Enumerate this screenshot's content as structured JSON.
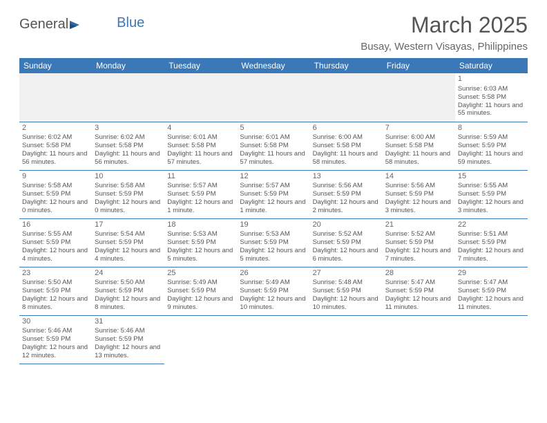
{
  "logo": {
    "text1": "General",
    "text2": "Blue"
  },
  "title": "March 2025",
  "location": "Busay, Western Visayas, Philippines",
  "header_color": "#3b78b8",
  "day_headers": [
    "Sunday",
    "Monday",
    "Tuesday",
    "Wednesday",
    "Thursday",
    "Friday",
    "Saturday"
  ],
  "weeks": [
    [
      null,
      null,
      null,
      null,
      null,
      null,
      {
        "n": "1",
        "sr": "Sunrise: 6:03 AM",
        "ss": "Sunset: 5:58 PM",
        "dl": "Daylight: 11 hours and 55 minutes."
      }
    ],
    [
      {
        "n": "2",
        "sr": "Sunrise: 6:02 AM",
        "ss": "Sunset: 5:58 PM",
        "dl": "Daylight: 11 hours and 56 minutes."
      },
      {
        "n": "3",
        "sr": "Sunrise: 6:02 AM",
        "ss": "Sunset: 5:58 PM",
        "dl": "Daylight: 11 hours and 56 minutes."
      },
      {
        "n": "4",
        "sr": "Sunrise: 6:01 AM",
        "ss": "Sunset: 5:58 PM",
        "dl": "Daylight: 11 hours and 57 minutes."
      },
      {
        "n": "5",
        "sr": "Sunrise: 6:01 AM",
        "ss": "Sunset: 5:58 PM",
        "dl": "Daylight: 11 hours and 57 minutes."
      },
      {
        "n": "6",
        "sr": "Sunrise: 6:00 AM",
        "ss": "Sunset: 5:58 PM",
        "dl": "Daylight: 11 hours and 58 minutes."
      },
      {
        "n": "7",
        "sr": "Sunrise: 6:00 AM",
        "ss": "Sunset: 5:58 PM",
        "dl": "Daylight: 11 hours and 58 minutes."
      },
      {
        "n": "8",
        "sr": "Sunrise: 5:59 AM",
        "ss": "Sunset: 5:59 PM",
        "dl": "Daylight: 11 hours and 59 minutes."
      }
    ],
    [
      {
        "n": "9",
        "sr": "Sunrise: 5:58 AM",
        "ss": "Sunset: 5:59 PM",
        "dl": "Daylight: 12 hours and 0 minutes."
      },
      {
        "n": "10",
        "sr": "Sunrise: 5:58 AM",
        "ss": "Sunset: 5:59 PM",
        "dl": "Daylight: 12 hours and 0 minutes."
      },
      {
        "n": "11",
        "sr": "Sunrise: 5:57 AM",
        "ss": "Sunset: 5:59 PM",
        "dl": "Daylight: 12 hours and 1 minute."
      },
      {
        "n": "12",
        "sr": "Sunrise: 5:57 AM",
        "ss": "Sunset: 5:59 PM",
        "dl": "Daylight: 12 hours and 1 minute."
      },
      {
        "n": "13",
        "sr": "Sunrise: 5:56 AM",
        "ss": "Sunset: 5:59 PM",
        "dl": "Daylight: 12 hours and 2 minutes."
      },
      {
        "n": "14",
        "sr": "Sunrise: 5:56 AM",
        "ss": "Sunset: 5:59 PM",
        "dl": "Daylight: 12 hours and 3 minutes."
      },
      {
        "n": "15",
        "sr": "Sunrise: 5:55 AM",
        "ss": "Sunset: 5:59 PM",
        "dl": "Daylight: 12 hours and 3 minutes."
      }
    ],
    [
      {
        "n": "16",
        "sr": "Sunrise: 5:55 AM",
        "ss": "Sunset: 5:59 PM",
        "dl": "Daylight: 12 hours and 4 minutes."
      },
      {
        "n": "17",
        "sr": "Sunrise: 5:54 AM",
        "ss": "Sunset: 5:59 PM",
        "dl": "Daylight: 12 hours and 4 minutes."
      },
      {
        "n": "18",
        "sr": "Sunrise: 5:53 AM",
        "ss": "Sunset: 5:59 PM",
        "dl": "Daylight: 12 hours and 5 minutes."
      },
      {
        "n": "19",
        "sr": "Sunrise: 5:53 AM",
        "ss": "Sunset: 5:59 PM",
        "dl": "Daylight: 12 hours and 5 minutes."
      },
      {
        "n": "20",
        "sr": "Sunrise: 5:52 AM",
        "ss": "Sunset: 5:59 PM",
        "dl": "Daylight: 12 hours and 6 minutes."
      },
      {
        "n": "21",
        "sr": "Sunrise: 5:52 AM",
        "ss": "Sunset: 5:59 PM",
        "dl": "Daylight: 12 hours and 7 minutes."
      },
      {
        "n": "22",
        "sr": "Sunrise: 5:51 AM",
        "ss": "Sunset: 5:59 PM",
        "dl": "Daylight: 12 hours and 7 minutes."
      }
    ],
    [
      {
        "n": "23",
        "sr": "Sunrise: 5:50 AM",
        "ss": "Sunset: 5:59 PM",
        "dl": "Daylight: 12 hours and 8 minutes."
      },
      {
        "n": "24",
        "sr": "Sunrise: 5:50 AM",
        "ss": "Sunset: 5:59 PM",
        "dl": "Daylight: 12 hours and 8 minutes."
      },
      {
        "n": "25",
        "sr": "Sunrise: 5:49 AM",
        "ss": "Sunset: 5:59 PM",
        "dl": "Daylight: 12 hours and 9 minutes."
      },
      {
        "n": "26",
        "sr": "Sunrise: 5:49 AM",
        "ss": "Sunset: 5:59 PM",
        "dl": "Daylight: 12 hours and 10 minutes."
      },
      {
        "n": "27",
        "sr": "Sunrise: 5:48 AM",
        "ss": "Sunset: 5:59 PM",
        "dl": "Daylight: 12 hours and 10 minutes."
      },
      {
        "n": "28",
        "sr": "Sunrise: 5:47 AM",
        "ss": "Sunset: 5:59 PM",
        "dl": "Daylight: 12 hours and 11 minutes."
      },
      {
        "n": "29",
        "sr": "Sunrise: 5:47 AM",
        "ss": "Sunset: 5:59 PM",
        "dl": "Daylight: 12 hours and 11 minutes."
      }
    ],
    [
      {
        "n": "30",
        "sr": "Sunrise: 5:46 AM",
        "ss": "Sunset: 5:59 PM",
        "dl": "Daylight: 12 hours and 12 minutes."
      },
      {
        "n": "31",
        "sr": "Sunrise: 5:46 AM",
        "ss": "Sunset: 5:59 PM",
        "dl": "Daylight: 12 hours and 13 minutes."
      },
      null,
      null,
      null,
      null,
      null
    ]
  ]
}
